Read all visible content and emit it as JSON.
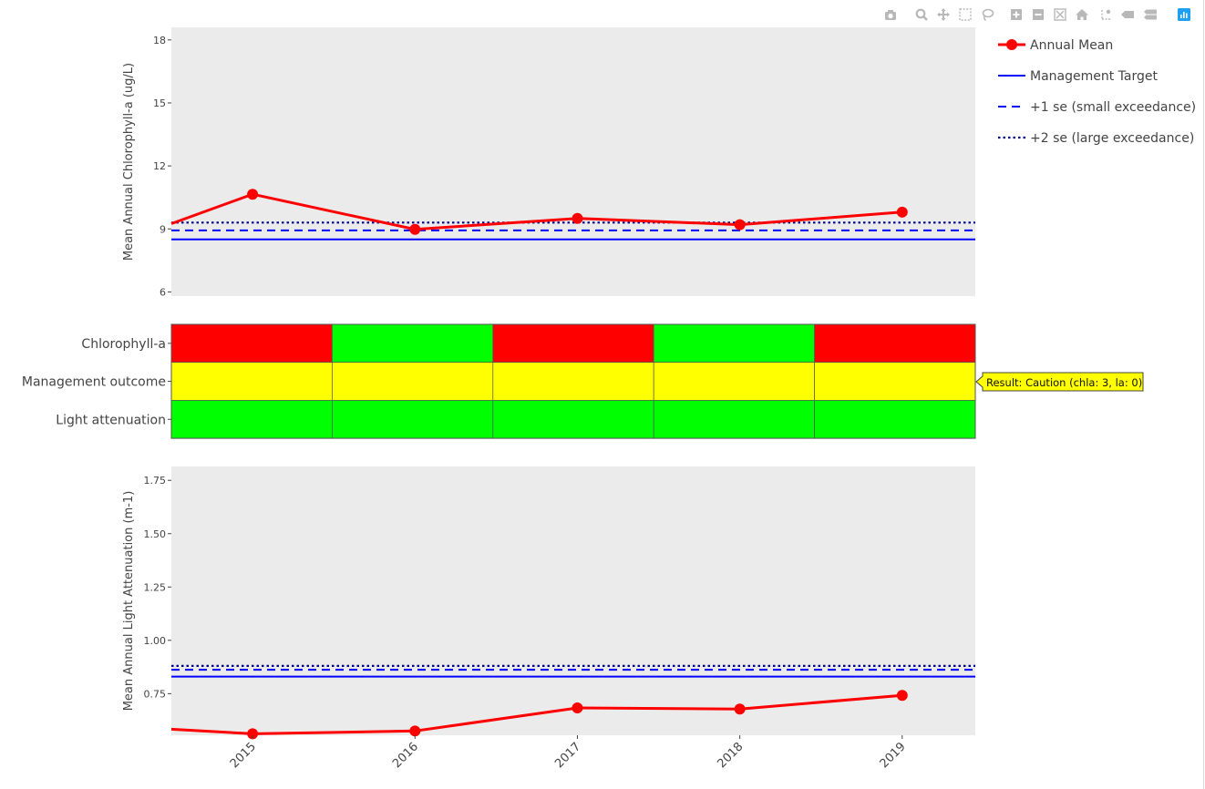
{
  "colors": {
    "annual_mean": "#ff0000",
    "target": "#0000ff",
    "se1": "#0000ff",
    "se2": "#00008b",
    "panel_bg": "#ebebeb",
    "red": "#ff0000",
    "green": "#00ff00",
    "yellow": "#ffff00",
    "tooltip_bg": "#ffff00",
    "modebar_icon": "#b8b8b8",
    "modebar_logo": "#1ea1f2"
  },
  "modebar": [
    {
      "name": "download-plot-camera-icon",
      "icon": "camera"
    },
    {
      "name": "zoom-icon",
      "icon": "magnifier"
    },
    {
      "name": "pan-icon",
      "icon": "move"
    },
    {
      "name": "box-select-icon",
      "icon": "dashed-box"
    },
    {
      "name": "lasso-select-icon",
      "icon": "lasso"
    },
    {
      "name": "zoom-in-icon",
      "icon": "plus-box"
    },
    {
      "name": "zoom-out-icon",
      "icon": "minus-box"
    },
    {
      "name": "autoscale-icon",
      "icon": "expand-box"
    },
    {
      "name": "reset-axes-icon",
      "icon": "home"
    },
    {
      "name": "toggle-spike-lines-icon",
      "icon": "spikelines"
    },
    {
      "name": "hover-closest-icon",
      "icon": "tag"
    },
    {
      "name": "hover-compare-icon",
      "icon": "double-tag"
    },
    {
      "name": "plotly-logo-icon",
      "icon": "plotly-logo"
    }
  ],
  "legend": [
    {
      "label": "Annual Mean",
      "style": "line-marker"
    },
    {
      "label": "Management Target",
      "style": "solid"
    },
    {
      "label": "+1 se (small exceedance)",
      "style": "dash"
    },
    {
      "label": "+2 se (large exceedance)",
      "style": "dot"
    }
  ],
  "tooltip": {
    "text": "Result: Caution (chla: 3, la: 0)"
  },
  "chart_data": [
    {
      "type": "line",
      "ylabel": "Mean Annual Chlorophyll-a (ug/L)",
      "ylim": [
        5.8,
        18.6
      ],
      "yticks": [
        6,
        9,
        12,
        15,
        18
      ],
      "yticklabels": [
        "6",
        "9",
        "12",
        "15",
        "18"
      ],
      "xlim": [
        2014.5,
        2019.45
      ],
      "x": [
        2015,
        2016,
        2017,
        2018,
        2019
      ],
      "series": [
        {
          "name": "Annual Mean",
          "x": [
            2014.5,
            2015,
            2016,
            2017,
            2018,
            2019
          ],
          "values": [
            9.25,
            10.65,
            8.98,
            9.5,
            9.2,
            9.8
          ],
          "marker_x": [
            2015,
            2016,
            2017,
            2018,
            2019
          ],
          "marker_values": [
            10.65,
            8.98,
            9.5,
            9.2,
            9.8
          ]
        },
        {
          "name": "Management Target",
          "value": 8.5
        },
        {
          "name": "+1 se (small exceedance)",
          "value": 8.93
        },
        {
          "name": "+2 se (large exceedance)",
          "value": 9.3
        }
      ]
    },
    {
      "type": "heatmap",
      "rows": [
        "Chlorophyll-a",
        "Management outcome",
        "Light attenuation"
      ],
      "x": [
        2015,
        2016,
        2017,
        2018,
        2019
      ],
      "cells": [
        [
          "red",
          "green",
          "red",
          "green",
          "red"
        ],
        [
          "yellow",
          "yellow",
          "yellow",
          "yellow",
          "yellow"
        ],
        [
          "green",
          "green",
          "green",
          "green",
          "green"
        ]
      ]
    },
    {
      "type": "line",
      "ylabel": "Mean Annual Light Attenuation (m-1)",
      "ylim": [
        0.555,
        1.815
      ],
      "yticks": [
        0.75,
        1.0,
        1.25,
        1.5,
        1.75
      ],
      "yticklabels": [
        "0.75",
        "1.00",
        "1.25",
        "1.50",
        "1.75"
      ],
      "xlim": [
        2014.5,
        2019.45
      ],
      "x": [
        2015,
        2016,
        2017,
        2018,
        2019
      ],
      "xticklabels": [
        "2015",
        "2016",
        "2017",
        "2018",
        "2019"
      ],
      "series": [
        {
          "name": "Annual Mean",
          "x": [
            2014.5,
            2015,
            2016,
            2017,
            2018,
            2019
          ],
          "values": [
            0.583,
            0.562,
            0.575,
            0.683,
            0.678,
            0.742
          ],
          "marker_x": [
            2015,
            2016,
            2017,
            2018,
            2019
          ],
          "marker_values": [
            0.562,
            0.575,
            0.683,
            0.678,
            0.742
          ]
        },
        {
          "name": "Management Target",
          "value": 0.83
        },
        {
          "name": "+1 se (small exceedance)",
          "value": 0.862
        },
        {
          "name": "+2 se (large exceedance)",
          "value": 0.88
        }
      ]
    }
  ]
}
